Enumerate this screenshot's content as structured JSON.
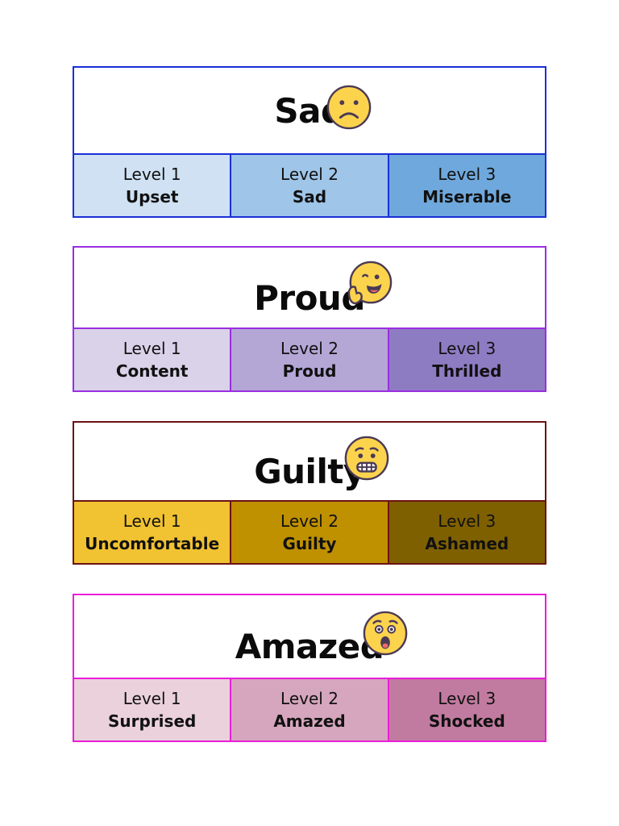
{
  "cards": [
    {
      "title": "Sad",
      "emoji_icon": "frowning-face-icon",
      "border_color": "#1a2fd6",
      "levels": [
        {
          "label": "Level 1",
          "word": "Upset",
          "color": "#cfe1f3"
        },
        {
          "label": "Level 2",
          "word": "Sad",
          "color": "#9fc5e8"
        },
        {
          "label": "Level 3",
          "word": "Miserable",
          "color": "#6fa8dc"
        }
      ]
    },
    {
      "title": "Proud",
      "emoji_icon": "thinking-grin-face-icon",
      "border_color": "#9b2de0",
      "levels": [
        {
          "label": "Level 1",
          "word": "Content",
          "color": "#d9d2e9"
        },
        {
          "label": "Level 2",
          "word": "Proud",
          "color": "#b4a7d6"
        },
        {
          "label": "Level 3",
          "word": "Thrilled",
          "color": "#8e7cc3"
        }
      ]
    },
    {
      "title": "Guilty",
      "emoji_icon": "grimacing-face-icon",
      "border_color": "#6b1212",
      "levels": [
        {
          "label": "Level 1",
          "word": "Uncomfortable",
          "color": "#f1c232"
        },
        {
          "label": "Level 2",
          "word": "Guilty",
          "color": "#bf9000"
        },
        {
          "label": "Level 3",
          "word": "Ashamed",
          "color": "#7f6000"
        }
      ]
    },
    {
      "title": "Amazed",
      "emoji_icon": "astonished-face-icon",
      "border_color": "#e91ed8",
      "levels": [
        {
          "label": "Level 1",
          "word": "Surprised",
          "color": "#ead1dc"
        },
        {
          "label": "Level 2",
          "word": "Amazed",
          "color": "#d5a6bd"
        },
        {
          "label": "Level 3",
          "word": "Shocked",
          "color": "#c27ba0"
        }
      ]
    }
  ]
}
